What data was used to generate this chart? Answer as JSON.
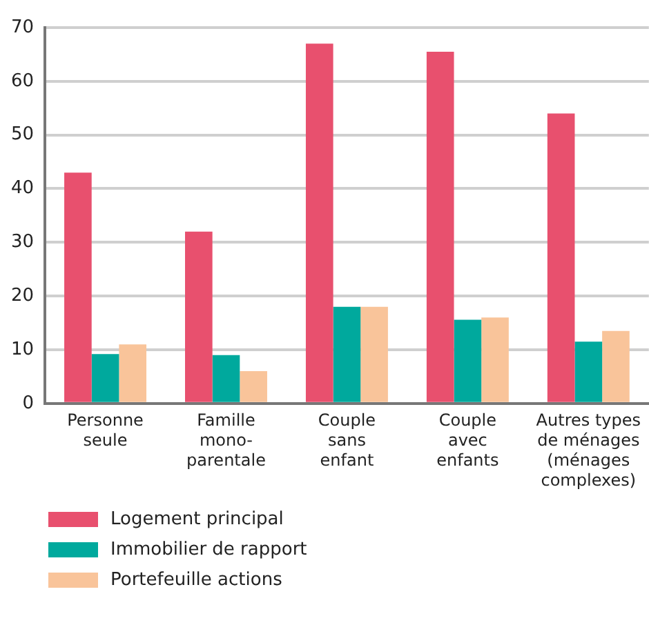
{
  "chart_data": {
    "type": "bar",
    "categories": [
      "Personne\nseule",
      "Famille\nmono-\nparentale",
      "Couple\nsans\nenfant",
      "Couple\navec\nenfants",
      "Autres types\nde ménages\n(ménages\ncomplexes)"
    ],
    "series": [
      {
        "name": "Logement principal",
        "color": "#e8506e",
        "values": [
          43,
          32,
          67,
          65.5,
          54
        ]
      },
      {
        "name": "Immobilier de rapport",
        "color": "#00a99d",
        "values": [
          9.2,
          9,
          18,
          15.6,
          11.5
        ]
      },
      {
        "name": "Portefeuille actions",
        "color": "#f9c49a",
        "values": [
          11,
          6,
          18,
          16,
          13.5
        ]
      }
    ],
    "ylim": [
      0,
      70
    ],
    "yticks": [
      0,
      10,
      20,
      30,
      40,
      50,
      60,
      70
    ],
    "grid": "y",
    "legend": "bottom left"
  }
}
